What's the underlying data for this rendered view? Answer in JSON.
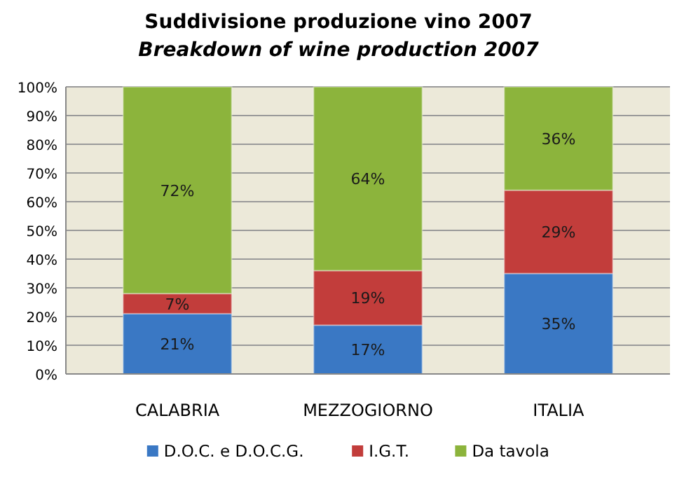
{
  "chart_data": {
    "type": "bar",
    "stacked": true,
    "title": "Suddivisione produzione vino 2007",
    "subtitle": "Breakdown of wine production 2007",
    "categories": [
      "CALABRIA",
      "MEZZOGIORNO",
      "ITALIA"
    ],
    "series": [
      {
        "name": "D.O.C. e D.O.C.G.",
        "color": "#3a78c4",
        "values": [
          21,
          17,
          35
        ],
        "value_labels": [
          "21%",
          "17%",
          "35%"
        ]
      },
      {
        "name": "I.G.T.",
        "color": "#c23d3b",
        "values": [
          7,
          19,
          29
        ],
        "value_labels": [
          "7%",
          "19%",
          "29%"
        ]
      },
      {
        "name": "Da tavola",
        "color": "#8cb43c",
        "values": [
          72,
          64,
          36
        ],
        "value_labels": [
          "72%",
          "64%",
          "36%"
        ]
      }
    ],
    "ylim": [
      0,
      100
    ],
    "yticks": [
      {
        "value": 0,
        "label": "0%"
      },
      {
        "value": 10,
        "label": "10%"
      },
      {
        "value": 20,
        "label": "20%"
      },
      {
        "value": 30,
        "label": "30%"
      },
      {
        "value": 40,
        "label": "40%"
      },
      {
        "value": 50,
        "label": "50%"
      },
      {
        "value": 60,
        "label": "60%"
      },
      {
        "value": 70,
        "label": "70%"
      },
      {
        "value": 80,
        "label": "80%"
      },
      {
        "value": 90,
        "label": "90%"
      },
      {
        "value": 100,
        "label": "100%"
      }
    ],
    "grid": "y",
    "legend": "bottom"
  }
}
